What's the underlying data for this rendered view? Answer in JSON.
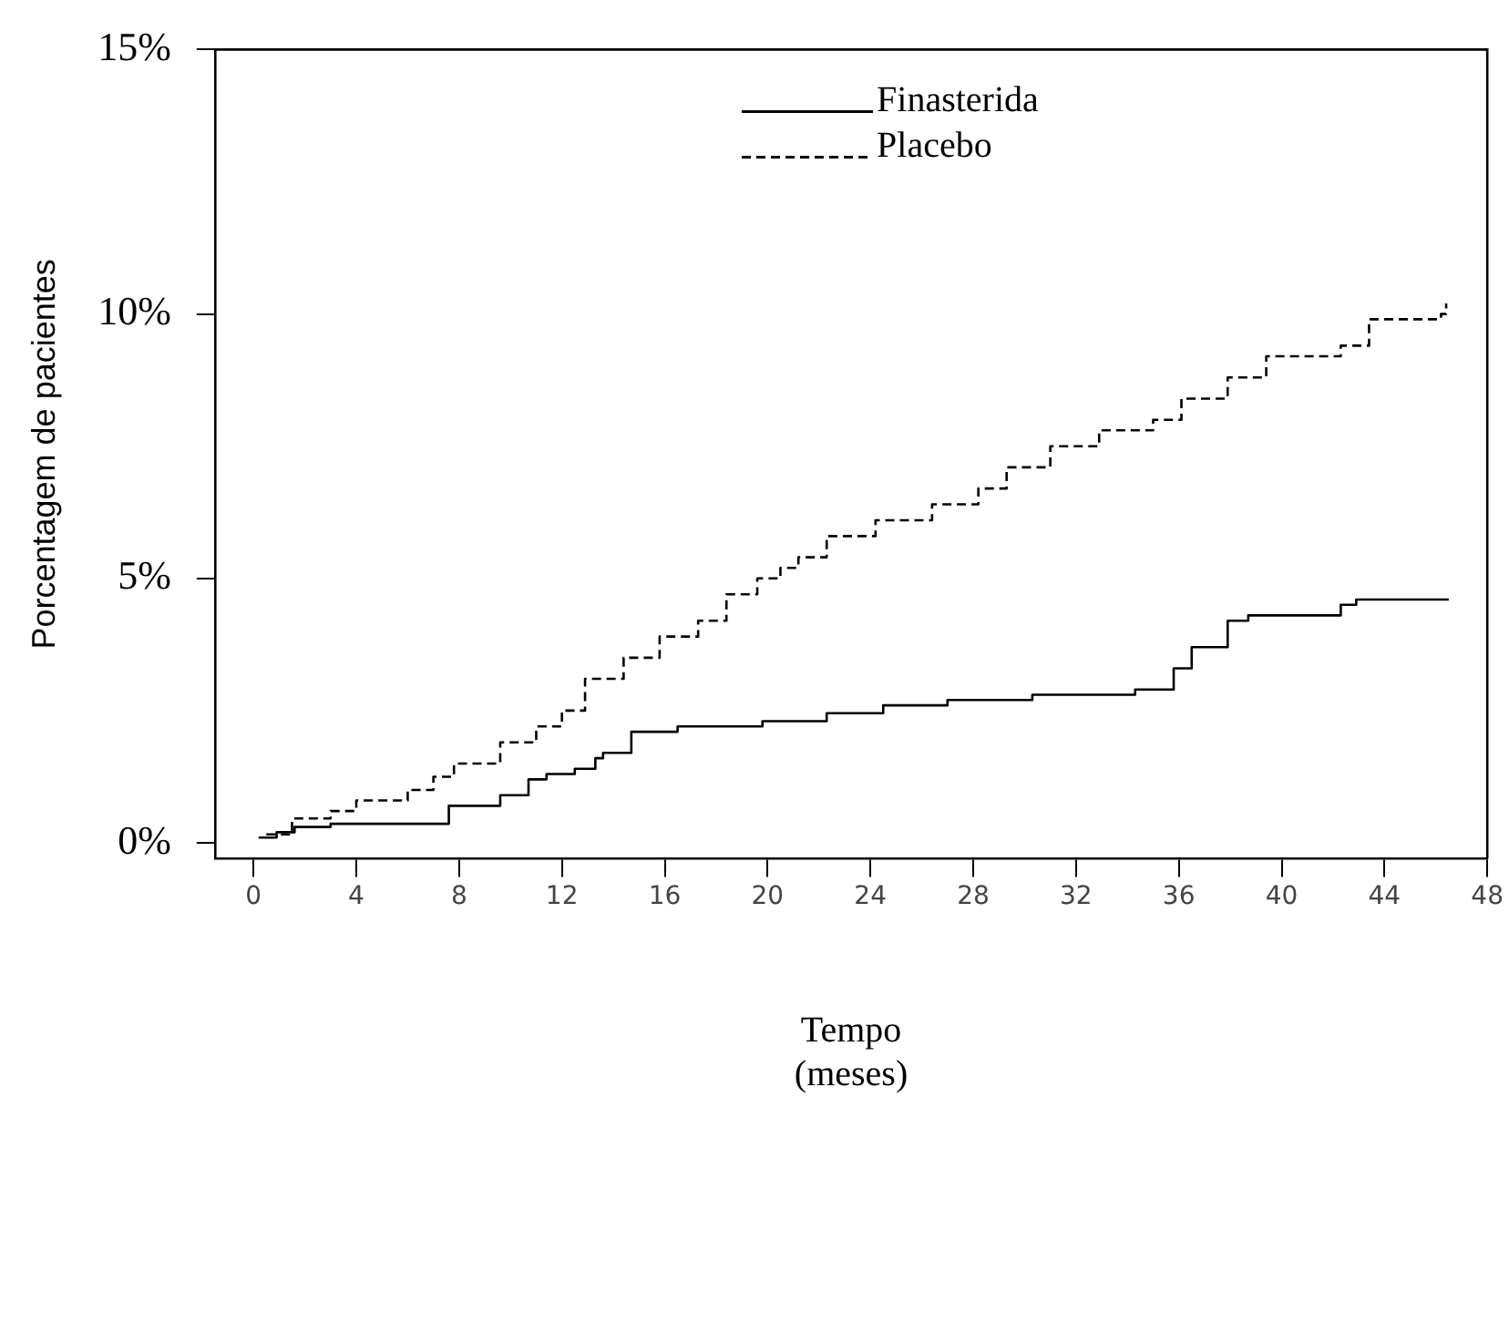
{
  "chart_data": {
    "type": "step",
    "xlabel": "Tempo\n(meses)",
    "ylabel": "Porcentagem de pacientes",
    "xlim": [
      -1.5,
      48
    ],
    "xticks": [
      0,
      4,
      8,
      12,
      16,
      20,
      24,
      28,
      32,
      36,
      40,
      44,
      48
    ],
    "ylim": [
      -0.3,
      15
    ],
    "yticks": [
      {
        "value": 0,
        "label": "0%"
      },
      {
        "value": 5,
        "label": "5%"
      },
      {
        "value": 10,
        "label": "10%"
      },
      {
        "value": 15,
        "label": "15%"
      }
    ],
    "grid": false,
    "legend": "top",
    "marker": "none",
    "series": [
      {
        "name": "Finasterida",
        "color": "#000000",
        "line_style": "solid",
        "x": [
          0.2,
          0.9,
          1.6,
          3,
          7.6,
          9.6,
          10.7,
          11.4,
          12.5,
          13.3,
          13.6,
          14.7,
          16.5,
          19.8,
          22.3,
          24.5,
          27,
          30.3,
          34.3,
          35.8,
          36.5,
          37.9,
          38.7,
          42.3,
          42.9,
          46.5
        ],
        "values": [
          0.1,
          0.2,
          0.3,
          0.36,
          0.7,
          0.9,
          1.2,
          1.3,
          1.4,
          1.6,
          1.7,
          2.1,
          2.2,
          2.3,
          2.45,
          2.6,
          2.7,
          2.8,
          2.9,
          3.3,
          3.7,
          4.2,
          4.3,
          4.5,
          4.6,
          4.6
        ]
      },
      {
        "name": "Placebo",
        "color": "#000000",
        "line_style": "dashed",
        "x": [
          0.5,
          1.5,
          3,
          4,
          6,
          7,
          7.8,
          9.6,
          11,
          12,
          12.9,
          14.4,
          15.8,
          17.3,
          18.4,
          19.6,
          20.5,
          21.2,
          22.3,
          24.2,
          26.4,
          28.2,
          29.3,
          31,
          32.9,
          35,
          36.1,
          37.9,
          39.4,
          42.3,
          43.4,
          46.2,
          46.4
        ],
        "values": [
          0.16,
          0.46,
          0.6,
          0.8,
          1.0,
          1.25,
          1.5,
          1.9,
          2.2,
          2.5,
          3.1,
          3.5,
          3.9,
          4.2,
          4.7,
          5.0,
          5.2,
          5.4,
          5.8,
          6.1,
          6.4,
          6.7,
          7.1,
          7.5,
          7.8,
          8.0,
          8.4,
          8.8,
          9.2,
          9.4,
          9.9,
          10.0,
          10.2
        ]
      }
    ]
  }
}
